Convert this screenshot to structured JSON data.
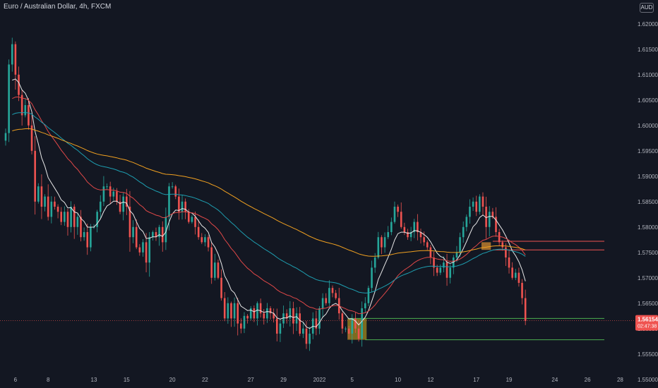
{
  "header": {
    "title": "Euro / Australian Dollar, 4h, FXCM",
    "currency": "AUD"
  },
  "price_label": {
    "price": "1.56154",
    "countdown": "02:47:38"
  },
  "colors": {
    "background": "#131722",
    "up": "#26a69a",
    "down": "#ef5350",
    "ma_white": "#e8e8e8",
    "ma_red": "#e04848",
    "ma_teal": "#1e9eb0",
    "ma_orange": "#f0a020",
    "zone": "#a08a20",
    "zone_orange": "#d08a30",
    "level_green": "#4caf50",
    "level_red": "#ef5350"
  },
  "chart_data": {
    "type": "candlestick",
    "symbol": "EURAUD",
    "timeframe": "4h",
    "y_ticks": [
      1.62,
      1.615,
      1.61,
      1.605,
      1.6,
      1.595,
      1.59,
      1.585,
      1.58,
      1.575,
      1.57,
      1.565,
      1.56,
      1.555,
      1.55
    ],
    "y_tick_labels": [
      "1.62000",
      "1.61500",
      "1.61000",
      "1.60500",
      "1.60000",
      "1.59500",
      "1.59000",
      "1.58500",
      "1.58000",
      "1.57500",
      "1.57000",
      "1.56500",
      "1.56000",
      "1.55500",
      "1.55000"
    ],
    "ylim": [
      1.5483,
      1.6247
    ],
    "x_ticks": [
      {
        "label": "6",
        "bar": 3
      },
      {
        "label": "8",
        "bar": 13
      },
      {
        "label": "13",
        "bar": 27
      },
      {
        "label": "15",
        "bar": 37
      },
      {
        "label": "20",
        "bar": 51
      },
      {
        "label": "22",
        "bar": 61
      },
      {
        "label": "27",
        "bar": 75
      },
      {
        "label": "29",
        "bar": 85
      },
      {
        "label": "2022",
        "bar": 96
      },
      {
        "label": "5",
        "bar": 106
      },
      {
        "label": "10",
        "bar": 120
      },
      {
        "label": "12",
        "bar": 130
      },
      {
        "label": "17",
        "bar": 144
      },
      {
        "label": "19",
        "bar": 154
      },
      {
        "label": "24",
        "bar": 168
      },
      {
        "label": "26",
        "bar": 178
      },
      {
        "label": "28",
        "bar": 188
      }
    ],
    "closes": [
      1.5985,
      1.612,
      1.616,
      1.61,
      1.606,
      1.602,
      1.604,
      1.6,
      1.595,
      1.585,
      1.588,
      1.584,
      1.586,
      1.582,
      1.585,
      1.584,
      1.583,
      1.581,
      1.583,
      1.58,
      1.584,
      1.58,
      1.582,
      1.578,
      1.579,
      1.576,
      1.58,
      1.58,
      1.583,
      1.585,
      1.588,
      1.588,
      1.586,
      1.587,
      1.585,
      1.583,
      1.586,
      1.584,
      1.578,
      1.58,
      1.576,
      1.575,
      1.577,
      1.573,
      1.578,
      1.579,
      1.578,
      1.58,
      1.577,
      1.582,
      1.588,
      1.588,
      1.586,
      1.583,
      1.585,
      1.583,
      1.581,
      1.582,
      1.58,
      1.578,
      1.577,
      1.578,
      1.576,
      1.57,
      1.573,
      1.57,
      1.566,
      1.562,
      1.565,
      1.562,
      1.565,
      1.561,
      1.56,
      1.5625,
      1.562,
      1.564,
      1.562,
      1.565,
      1.563,
      1.562,
      1.564,
      1.563,
      1.562,
      1.559,
      1.561,
      1.563,
      1.562,
      1.564,
      1.561,
      1.563,
      1.559,
      1.56,
      1.557,
      1.559,
      1.562,
      1.56,
      1.564,
      1.566,
      1.565,
      1.568,
      1.567,
      1.566,
      1.563,
      1.56,
      1.56,
      1.559,
      1.562,
      1.56,
      1.558,
      1.564,
      1.565,
      1.568,
      1.572,
      1.574,
      1.578,
      1.576,
      1.578,
      1.579,
      1.581,
      1.584,
      1.583,
      1.58,
      1.579,
      1.578,
      1.579,
      1.581,
      1.579,
      1.578,
      1.577,
      1.576,
      1.574,
      1.572,
      1.571,
      1.572,
      1.573,
      1.57,
      1.572,
      1.574,
      1.575,
      1.578,
      1.58,
      1.582,
      1.584,
      1.585,
      1.583,
      1.586,
      1.584,
      1.58,
      1.583,
      1.582,
      1.579,
      1.577,
      1.576,
      1.574,
      1.572,
      1.57,
      1.571,
      1.569,
      1.566,
      1.5615
    ],
    "high": 1.6175,
    "low": 1.5565,
    "moving_averages": [
      {
        "color_key": "ma_white"
      },
      {
        "color_key": "ma_red"
      },
      {
        "color_key": "ma_teal"
      },
      {
        "color_key": "ma_orange"
      }
    ],
    "zones": [
      {
        "x_bar": [
          105,
          110
        ],
        "y": [
          1.5578,
          1.562
        ],
        "color_key": "zone"
      },
      {
        "x_bar": [
          146,
          148
        ],
        "y": [
          1.5755,
          1.577
        ],
        "color_key": "zone_orange"
      }
    ],
    "levels": [
      {
        "y": 1.562,
        "x_bar_start": 105,
        "color_key": "level_green"
      },
      {
        "y": 1.5578,
        "x_bar_start": 110,
        "color_key": "level_green"
      },
      {
        "y": 1.5772,
        "x_bar_start": 149,
        "color_key": "level_red"
      },
      {
        "y": 1.5755,
        "x_bar_start": 149,
        "color_key": "level_red"
      }
    ],
    "current_price": 1.56154
  }
}
